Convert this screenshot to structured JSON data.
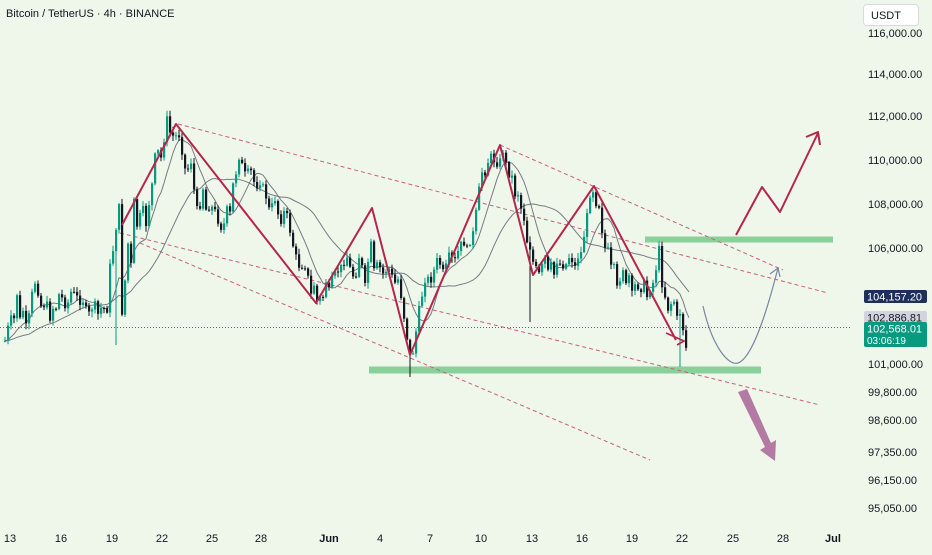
{
  "header": {
    "title": "Bitcoin / TetherUS · 4h · BINANCE"
  },
  "currency": {
    "label": "USDT"
  },
  "chart_data": {
    "type": "candlestick",
    "y_axis": {
      "side": "right",
      "tick_labels": [
        "116,000.00",
        "114,000.00",
        "112,000.00",
        "110,000.00",
        "108,000.00",
        "106,000.00",
        "101,000.00",
        "99,800.00",
        "98,600.00",
        "97,350.00",
        "96,150.00",
        "95,050.00"
      ],
      "ticks_upper": [
        116000,
        114000,
        112000,
        110000,
        108000,
        106000
      ],
      "ticks_lower": [
        101000,
        99800,
        98600,
        97350,
        96150,
        95050
      ]
    },
    "x_axis": {
      "tick_labels": [
        "13",
        "16",
        "19",
        "22",
        "25",
        "28",
        "Jun",
        "4",
        "7",
        "10",
        "13",
        "16",
        "19",
        "22",
        "25",
        "28",
        "Jul"
      ]
    },
    "price_badges": [
      {
        "value": 104157.2,
        "label": "104,157.20",
        "color": "#1e2f5c",
        "text_color": "#ffffff"
      },
      {
        "value": 102886.81,
        "label": "102,886.81",
        "color": "#d1d4dc",
        "text_color": "#131722"
      },
      {
        "value": 102568.01,
        "label": "102,568.01",
        "sub": "03:06:19",
        "color": "#089981",
        "text_color": "#ffffff"
      }
    ],
    "up_color": "#089981",
    "down_color": "#131722",
    "annotation_color": "#b5264c",
    "channel_color": "#c8627a",
    "zone_color": "#8ad09a",
    "ma_color": "#5f6673",
    "closes": [
      [
        0,
        102000
      ],
      [
        2,
        101600
      ],
      [
        4,
        103600
      ],
      [
        6,
        103000
      ],
      [
        8,
        103200
      ],
      [
        10,
        102700
      ],
      [
        12,
        104000
      ],
      [
        14,
        103100
      ],
      [
        16,
        102800
      ],
      [
        18,
        103300
      ],
      [
        20,
        103000
      ],
      [
        22,
        102300
      ],
      [
        24,
        103100
      ],
      [
        26,
        104200
      ],
      [
        28,
        103900
      ],
      [
        30,
        104500
      ],
      [
        32,
        103800
      ],
      [
        34,
        104300
      ],
      [
        36,
        103500
      ],
      [
        38,
        103800
      ],
      [
        40,
        103200
      ],
      [
        42,
        103600
      ],
      [
        44,
        102900
      ],
      [
        46,
        103000
      ],
      [
        48,
        103400
      ],
      [
        50,
        103100
      ],
      [
        52,
        103700
      ],
      [
        54,
        104000
      ],
      [
        56,
        103600
      ],
      [
        58,
        104100
      ],
      [
        60,
        103500
      ],
      [
        62,
        103900
      ],
      [
        64,
        103400
      ],
      [
        66,
        104100
      ],
      [
        68,
        103800
      ],
      [
        70,
        104300
      ],
      [
        72,
        103900
      ],
      [
        74,
        103900
      ],
      [
        76,
        103400
      ],
      [
        78,
        103700
      ],
      [
        80,
        103300
      ],
      [
        82,
        103500
      ],
      [
        84,
        103200
      ],
      [
        86,
        103500
      ],
      [
        88,
        103300
      ],
      [
        90,
        103600
      ],
      [
        92,
        103100
      ],
      [
        94,
        103200
      ],
      [
        96,
        103400
      ],
      [
        98,
        103600
      ],
      [
        100,
        103200
      ],
      [
        102,
        103300
      ],
      [
        104,
        104500
      ],
      [
        106,
        106000
      ],
      [
        108,
        105900
      ],
      [
        110,
        107000
      ],
      [
        112,
        106800
      ],
      [
        114,
        107900
      ],
      [
        116,
        102800
      ],
      [
        118,
        103600
      ],
      [
        120,
        104600
      ],
      [
        122,
        105800
      ],
      [
        124,
        106600
      ],
      [
        126,
        105300
      ],
      [
        128,
        107800
      ],
      [
        130,
        108500
      ],
      [
        132,
        107000
      ],
      [
        134,
        108000
      ],
      [
        136,
        107000
      ],
      [
        138,
        107800
      ],
      [
        140,
        106500
      ],
      [
        142,
        107600
      ],
      [
        144,
        108000
      ],
      [
        146,
        108600
      ],
      [
        148,
        109200
      ],
      [
        150,
        110200
      ],
      [
        152,
        109400
      ],
      [
        154,
        111400
      ],
      [
        156,
        110100
      ],
      [
        158,
        111200
      ],
      [
        160,
        110600
      ],
      [
        162,
        111900
      ],
      [
        164,
        110900
      ],
      [
        166,
        111600
      ],
      [
        168,
        111100
      ],
      [
        170,
        111600
      ],
      [
        172,
        110600
      ],
      [
        174,
        111100
      ],
      [
        176,
        110100
      ],
      [
        178,
        110600
      ],
      [
        180,
        109600
      ],
      [
        182,
        110200
      ],
      [
        184,
        109000
      ],
      [
        186,
        109900
      ],
      [
        188,
        108400
      ],
      [
        190,
        108900
      ],
      [
        192,
        107800
      ],
      [
        194,
        108500
      ],
      [
        196,
        107300
      ],
      [
        198,
        108700
      ],
      [
        200,
        107500
      ],
      [
        202,
        108000
      ],
      [
        204,
        107800
      ],
      [
        206,
        108500
      ],
      [
        208,
        107200
      ],
      [
        210,
        107700
      ],
      [
        212,
        106900
      ],
      [
        214,
        107500
      ],
      [
        216,
        106900
      ],
      [
        218,
        107300
      ],
      [
        220,
        106900
      ],
      [
        222,
        107800
      ],
      [
        224,
        107000
      ],
      [
        226,
        108200
      ],
      [
        228,
        108900
      ],
      [
        230,
        109800
      ],
      [
        232,
        109000
      ],
      [
        234,
        110100
      ],
      [
        236,
        109600
      ],
      [
        238,
        110000
      ],
      [
        240,
        109400
      ],
      [
        242,
        109700
      ],
      [
        244,
        109300
      ],
      [
        246,
        109500
      ],
      [
        248,
        108800
      ],
      [
        250,
        109200
      ],
      [
        252,
        108800
      ],
      [
        254,
        109300
      ],
      [
        256,
        108600
      ],
      [
        258,
        108800
      ],
      [
        260,
        108200
      ],
      [
        262,
        108400
      ],
      [
        264,
        107800
      ],
      [
        266,
        108300
      ],
      [
        268,
        107600
      ],
      [
        270,
        108200
      ],
      [
        272,
        107300
      ],
      [
        274,
        107800
      ],
      [
        276,
        107200
      ],
      [
        278,
        108000
      ],
      [
        280,
        107300
      ],
      [
        282,
        107500
      ],
      [
        284,
        106900
      ],
      [
        286,
        106600
      ],
      [
        288,
        106100
      ],
      [
        290,
        105400
      ],
      [
        292,
        105900
      ],
      [
        294,
        105200
      ],
      [
        296,
        105600
      ],
      [
        298,
        104800
      ],
      [
        300,
        105200
      ],
      [
        302,
        104600
      ],
      [
        304,
        104900
      ],
      [
        306,
        104000
      ],
      [
        308,
        104700
      ],
      [
        310,
        104100
      ],
      [
        312,
        103700
      ],
      [
        314,
        104200
      ],
      [
        316,
        103500
      ],
      [
        318,
        103900
      ],
      [
        320,
        104300
      ],
      [
        322,
        104800
      ],
      [
        324,
        104200
      ],
      [
        326,
        105000
      ],
      [
        328,
        104400
      ],
      [
        330,
        104900
      ],
      [
        332,
        105400
      ],
      [
        334,
        104600
      ],
      [
        336,
        105200
      ],
      [
        338,
        105700
      ],
      [
        340,
        105000
      ],
      [
        342,
        105600
      ],
      [
        344,
        105000
      ],
      [
        346,
        105300
      ],
      [
        348,
        104800
      ],
      [
        350,
        105100
      ],
      [
        352,
        104600
      ],
      [
        354,
        105600
      ],
      [
        356,
        105000
      ],
      [
        358,
        105400
      ],
      [
        360,
        104400
      ],
      [
        362,
        105100
      ],
      [
        364,
        105700
      ],
      [
        366,
        106200
      ],
      [
        368,
        105300
      ],
      [
        370,
        104800
      ],
      [
        372,
        105300
      ],
      [
        374,
        104900
      ],
      [
        376,
        105400
      ],
      [
        378,
        104900
      ],
      [
        380,
        105300
      ],
      [
        382,
        104700
      ],
      [
        384,
        105100
      ],
      [
        386,
        104600
      ],
      [
        388,
        105000
      ],
      [
        390,
        104500
      ],
      [
        392,
        104900
      ],
      [
        394,
        104400
      ],
      [
        396,
        103900
      ],
      [
        398,
        103300
      ],
      [
        400,
        102700
      ],
      [
        402,
        102100
      ],
      [
        404,
        101600
      ],
      [
        406,
        101200
      ],
      [
        408,
        101500
      ],
      [
        410,
        102600
      ],
      [
        412,
        102200
      ],
      [
        414,
        103400
      ],
      [
        416,
        104100
      ],
      [
        418,
        103800
      ],
      [
        420,
        104600
      ],
      [
        422,
        104300
      ],
      [
        424,
        105100
      ],
      [
        426,
        104600
      ],
      [
        428,
        105200
      ],
      [
        430,
        104900
      ],
      [
        432,
        105500
      ],
      [
        434,
        105100
      ],
      [
        436,
        105500
      ],
      [
        438,
        105000
      ],
      [
        440,
        105400
      ],
      [
        442,
        105100
      ],
      [
        444,
        105700
      ],
      [
        446,
        105300
      ],
      [
        448,
        105800
      ],
      [
        450,
        105500
      ],
      [
        452,
        106000
      ],
      [
        454,
        105700
      ],
      [
        456,
        106200
      ],
      [
        458,
        105900
      ],
      [
        460,
        106500
      ],
      [
        462,
        106000
      ],
      [
        464,
        106400
      ],
      [
        466,
        106100
      ],
      [
        468,
        106700
      ],
      [
        470,
        107400
      ],
      [
        472,
        107900
      ],
      [
        474,
        108700
      ],
      [
        476,
        109100
      ],
      [
        478,
        109800
      ],
      [
        480,
        109400
      ],
      [
        482,
        110100
      ],
      [
        484,
        109700
      ],
      [
        486,
        110200
      ],
      [
        488,
        109600
      ],
      [
        490,
        110300
      ],
      [
        492,
        109800
      ],
      [
        494,
        110100
      ],
      [
        496,
        109900
      ],
      [
        498,
        110400
      ],
      [
        500,
        110000
      ],
      [
        502,
        109700
      ],
      [
        504,
        109300
      ],
      [
        506,
        109600
      ],
      [
        508,
        108900
      ],
      [
        510,
        108400
      ],
      [
        512,
        108800
      ],
      [
        514,
        108100
      ],
      [
        516,
        107800
      ],
      [
        518,
        107600
      ],
      [
        520,
        107000
      ],
      [
        522,
        106300
      ],
      [
        524,
        105800
      ],
      [
        526,
        106200
      ],
      [
        528,
        105400
      ],
      [
        530,
        105000
      ],
      [
        532,
        105300
      ],
      [
        534,
        104900
      ],
      [
        536,
        105400
      ],
      [
        538,
        105100
      ],
      [
        540,
        105600
      ],
      [
        542,
        105100
      ],
      [
        544,
        104900
      ],
      [
        546,
        105300
      ],
      [
        548,
        105000
      ],
      [
        550,
        104700
      ],
      [
        552,
        105400
      ],
      [
        554,
        105100
      ],
      [
        556,
        105500
      ],
      [
        558,
        105200
      ],
      [
        560,
        105500
      ],
      [
        562,
        105100
      ],
      [
        564,
        105600
      ],
      [
        566,
        105200
      ],
      [
        568,
        105700
      ],
      [
        570,
        105200
      ],
      [
        572,
        105800
      ],
      [
        574,
        105400
      ],
      [
        576,
        105800
      ],
      [
        578,
        106300
      ],
      [
        580,
        106800
      ],
      [
        582,
        107500
      ],
      [
        584,
        108100
      ],
      [
        586,
        108700
      ],
      [
        588,
        108600
      ],
      [
        590,
        108400
      ],
      [
        592,
        107600
      ],
      [
        594,
        107900
      ],
      [
        596,
        107000
      ],
      [
        598,
        106500
      ],
      [
        600,
        106000
      ],
      [
        602,
        106300
      ],
      [
        604,
        105600
      ],
      [
        606,
        105200
      ],
      [
        608,
        105600
      ],
      [
        610,
        104800
      ],
      [
        612,
        104300
      ],
      [
        614,
        104800
      ],
      [
        616,
        104500
      ],
      [
        618,
        105100
      ],
      [
        620,
        104600
      ],
      [
        622,
        104200
      ],
      [
        624,
        104800
      ],
      [
        626,
        104300
      ],
      [
        628,
        103800
      ],
      [
        630,
        104400
      ],
      [
        632,
        104000
      ],
      [
        634,
        104600
      ],
      [
        636,
        104200
      ],
      [
        638,
        104700
      ],
      [
        640,
        104300
      ],
      [
        642,
        103900
      ],
      [
        644,
        104400
      ],
      [
        646,
        104000
      ],
      [
        648,
        104500
      ],
      [
        650,
        104800
      ],
      [
        652,
        105400
      ],
      [
        654,
        106000
      ],
      [
        656,
        104600
      ],
      [
        658,
        104200
      ],
      [
        660,
        103900
      ],
      [
        662,
        103500
      ],
      [
        664,
        103200
      ],
      [
        666,
        103600
      ],
      [
        668,
        103900
      ],
      [
        670,
        103500
      ],
      [
        672,
        103000
      ],
      [
        674,
        103400
      ],
      [
        676,
        103000
      ],
      [
        678,
        102500
      ],
      [
        680,
        102000
      ],
      [
        682,
        101400
      ],
      [
        684,
        102000
      ],
      [
        686,
        102600
      ]
    ]
  }
}
